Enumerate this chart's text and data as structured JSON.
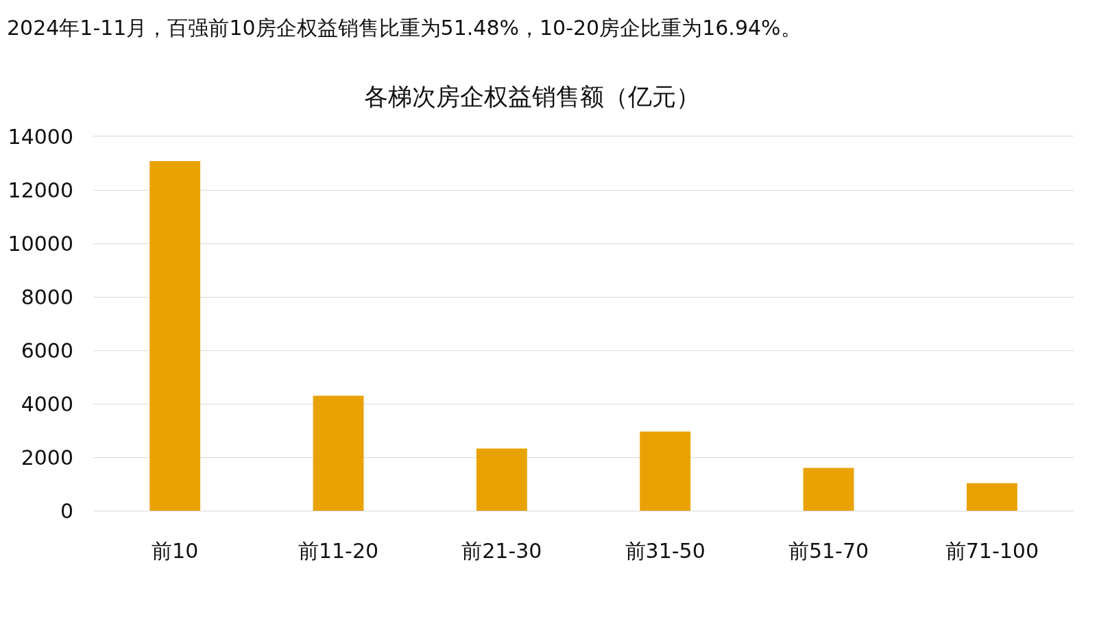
{
  "chart_data": {
    "type": "bar",
    "title": "各梯次房企权益销售额（亿元）",
    "annotations": [
      "2024年1-11月，百强前10房企权益销售比重为51.48%，10-20房企比重为16.94%。"
    ],
    "categories": [
      "前10",
      "前11-20",
      "前21-30",
      "前31-50",
      "前51-70",
      "前71-100"
    ],
    "values": [
      13080,
      4300,
      2330,
      2960,
      1600,
      1030
    ],
    "color": "#e9a204",
    "ylim": [
      0,
      14000
    ],
    "yticks": [
      0,
      2000,
      4000,
      6000,
      8000,
      10000,
      12000,
      14000
    ],
    "grid": "y"
  }
}
